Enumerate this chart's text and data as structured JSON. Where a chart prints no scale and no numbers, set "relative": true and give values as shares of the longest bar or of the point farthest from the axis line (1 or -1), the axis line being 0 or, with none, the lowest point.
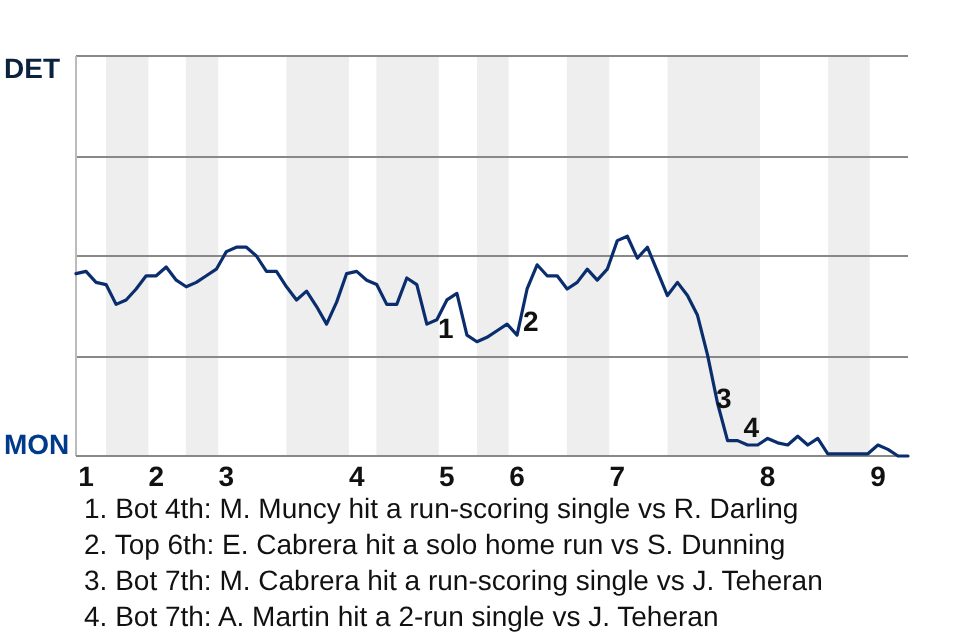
{
  "chart_data": {
    "type": "line",
    "relative": true,
    "marker": "none",
    "line_style": "solid",
    "categories": [
      null,
      "1",
      null,
      null,
      null,
      null,
      null,
      null,
      "2",
      null,
      null,
      null,
      null,
      null,
      null,
      "3",
      null,
      null,
      null,
      null,
      null,
      null,
      null,
      null,
      null,
      null,
      null,
      null,
      "4",
      null,
      null,
      null,
      null,
      null,
      null,
      null,
      null,
      "5",
      null,
      null,
      null,
      null,
      null,
      null,
      "6",
      null,
      null,
      null,
      null,
      null,
      null,
      null,
      null,
      null,
      "7",
      null,
      null,
      null,
      null,
      null,
      null,
      null,
      null,
      null,
      null,
      null,
      null,
      null,
      null,
      "8",
      null,
      null,
      null,
      null,
      null,
      null,
      null,
      null,
      null,
      null,
      "9",
      null,
      null,
      null
    ],
    "series": [
      {
        "color": "#0a2d6e",
        "values": [
          0.83,
          0.84,
          0.79,
          0.78,
          0.69,
          0.71,
          0.76,
          0.82,
          0.82,
          0.86,
          0.8,
          0.77,
          0.79,
          0.82,
          0.85,
          0.93,
          0.95,
          0.95,
          0.91,
          0.84,
          0.84,
          0.77,
          0.71,
          0.75,
          0.68,
          0.6,
          0.7,
          0.83,
          0.84,
          0.8,
          0.78,
          0.69,
          0.69,
          0.81,
          0.78,
          0.6,
          0.62,
          0.71,
          0.74,
          0.55,
          0.52,
          0.54,
          0.57,
          0.6,
          0.55,
          0.76,
          0.87,
          0.82,
          0.82,
          0.76,
          0.79,
          0.85,
          0.8,
          0.85,
          0.98,
          1,
          0.9,
          0.95,
          0.84,
          0.73,
          0.79,
          0.73,
          0.64,
          0.46,
          0.24,
          0.07,
          0.07,
          0.05,
          0.05,
          0.08,
          0.06,
          0.05,
          0.09,
          0.05,
          0.08,
          0.01,
          0.01,
          0.01,
          0.01,
          0.01,
          0.05,
          0.03,
          0,
          0
        ]
      }
    ],
    "ref_lines": [
      {
        "axis": "y",
        "value": 0.45,
        "color": "#888888"
      },
      {
        "axis": "y",
        "value": 0.91,
        "color": "#888888"
      },
      {
        "axis": "y",
        "value": 1.36,
        "color": "#888888"
      },
      {
        "axis": "y",
        "value": 1.82,
        "color": "#888888"
      }
    ],
    "annotations": [
      "DET",
      "MON",
      "1",
      {
        "text": "2",
        "x": "6",
        "y": 0.55
      },
      "3",
      {
        "text": "4",
        "y": 0.07
      },
      "1. Bot 4th: M. Muncy hit a run-scoring single vs R. Darling",
      "2. Top 6th: E. Cabrera hit a solo home run vs S. Dunning",
      "3. Bot 7th: M. Cabrera hit a run-scoring single vs J. Teheran",
      "4. Bot 7th: A. Martin hit a 2-run single vs J. Teheran"
    ]
  }
}
